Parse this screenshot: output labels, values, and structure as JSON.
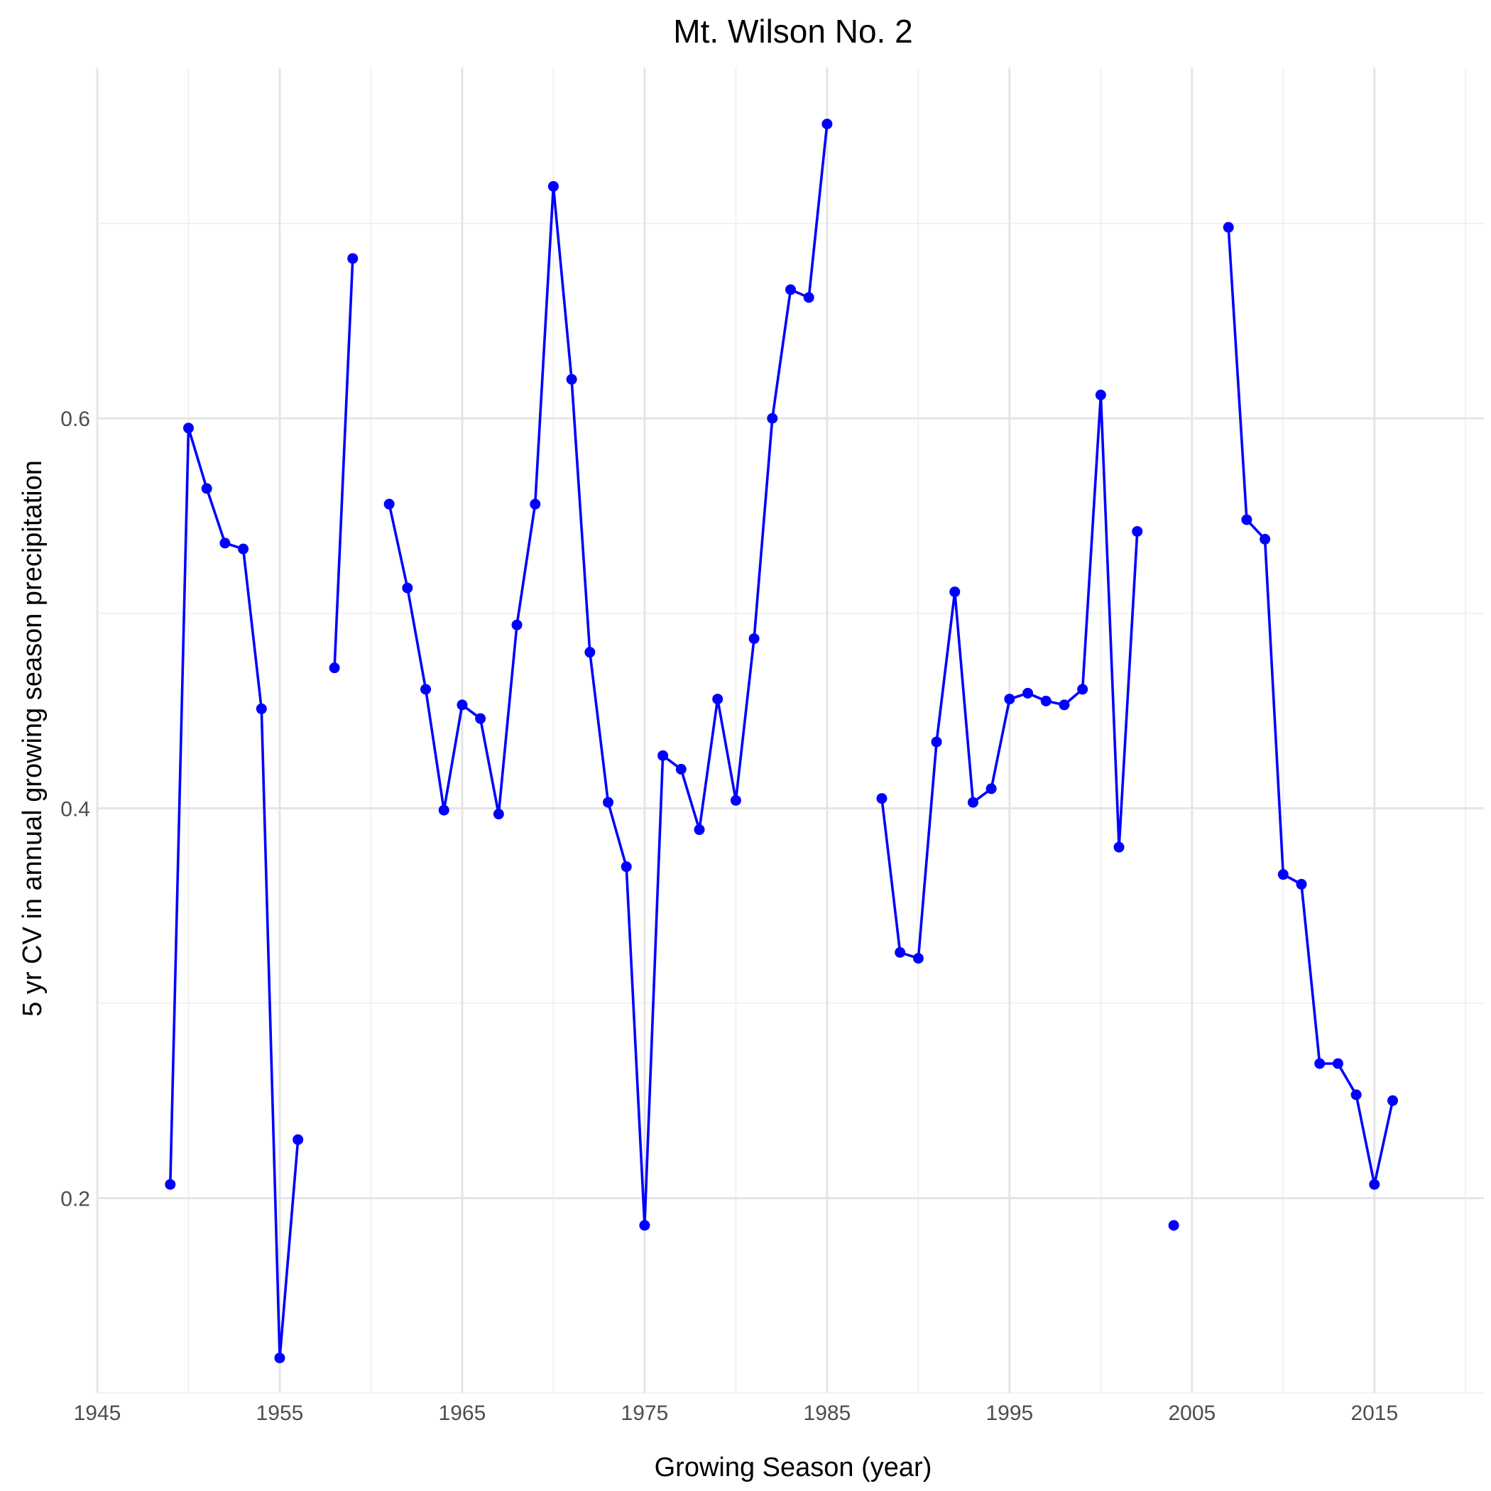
{
  "chart_data": {
    "type": "line",
    "title": "Mt. Wilson No. 2",
    "xlabel": "Growing Season (year)",
    "ylabel": "5 yr CV in annual growing season precipitation",
    "xlim": [
      1945,
      2021
    ],
    "ylim": [
      0.1,
      0.78
    ],
    "xticks": [
      1945,
      1955,
      1965,
      1975,
      1985,
      1995,
      2005,
      2015
    ],
    "xtick_labels": [
      "1945",
      "1955",
      "1965",
      "1975",
      "1985",
      "1995",
      "2005",
      "2015"
    ],
    "x_minor_ticks": [
      1950,
      1960,
      1970,
      1980,
      1990,
      2000,
      2010,
      2020
    ],
    "yticks": [
      0.2,
      0.4,
      0.6
    ],
    "ytick_labels": [
      "0.2",
      "0.4",
      "0.6"
    ],
    "y_minor_ticks": [
      0.1,
      0.3,
      0.5,
      0.7
    ],
    "grid": true,
    "legend": "none",
    "color": "#0000ff",
    "series": [
      {
        "x": [
          1949,
          1950,
          1951,
          1952,
          1953,
          1954,
          1955,
          1956,
          1957,
          1958,
          1959,
          1960,
          1961,
          1962,
          1963,
          1964,
          1965,
          1966,
          1967,
          1968,
          1969,
          1970,
          1971,
          1972,
          1973,
          1974,
          1975,
          1976,
          1977,
          1978,
          1979,
          1980,
          1981,
          1982,
          1983,
          1984,
          1985,
          1986,
          1987,
          1988,
          1989,
          1990,
          1991,
          1992,
          1993,
          1994,
          1995,
          1996,
          1997,
          1998,
          1999,
          2000,
          2001,
          2002,
          2003,
          2004,
          2005,
          2006,
          2007,
          2008,
          2009,
          2010,
          2011,
          2012,
          2013,
          2014,
          2015,
          2016
        ],
        "y": [
          0.207,
          0.595,
          0.564,
          0.536,
          0.533,
          0.451,
          0.118,
          0.23,
          null,
          0.472,
          0.682,
          null,
          0.556,
          0.513,
          0.461,
          0.399,
          0.453,
          0.446,
          0.397,
          0.494,
          0.556,
          0.719,
          0.62,
          0.48,
          0.403,
          0.37,
          0.186,
          0.427,
          0.42,
          0.389,
          0.456,
          0.404,
          0.487,
          0.6,
          0.666,
          0.662,
          0.751,
          null,
          null,
          0.405,
          0.326,
          0.323,
          0.434,
          0.511,
          0.403,
          0.41,
          0.456,
          0.459,
          0.455,
          0.453,
          0.461,
          0.612,
          0.38,
          0.542,
          null,
          0.186,
          null,
          null,
          0.698,
          0.548,
          0.538,
          0.366,
          0.361,
          0.269,
          0.269,
          0.253,
          0.207,
          0.25
        ]
      }
    ]
  }
}
